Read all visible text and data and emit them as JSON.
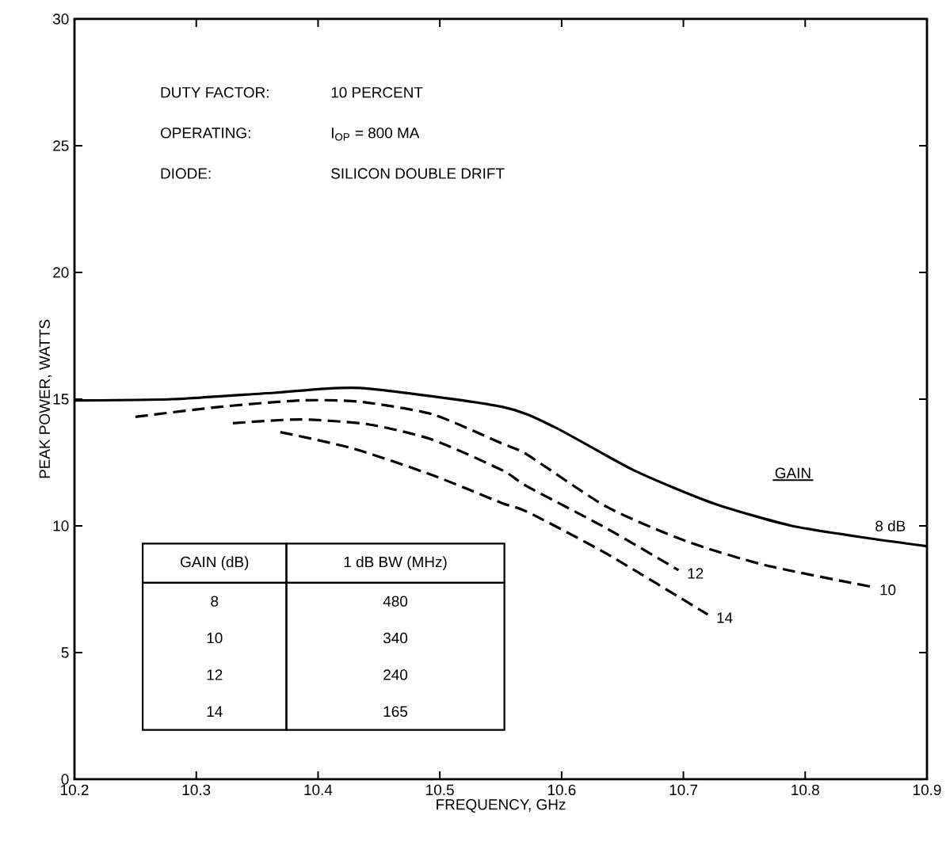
{
  "chart_data": {
    "type": "line",
    "xlabel": "FREQUENCY, GHz",
    "ylabel": "PEAK POWER, WATTS",
    "xlim": [
      10.2,
      10.9
    ],
    "ylim": [
      0,
      30
    ],
    "xticks": [
      10.2,
      10.3,
      10.4,
      10.5,
      10.6,
      10.7,
      10.8,
      10.9
    ],
    "yticks": [
      0,
      5,
      10,
      15,
      20,
      25,
      30
    ],
    "grid": false,
    "legend_title": "GAIN",
    "marker": "none",
    "series": [
      {
        "name": "8 dB",
        "color": "#000000",
        "line_style": "solid",
        "x": [
          10.2,
          10.28,
          10.364,
          10.434,
          10.551,
          10.594,
          10.659,
          10.724,
          10.789,
          10.854,
          10.9
        ],
        "values": [
          14.95,
          15.0,
          15.25,
          15.44,
          14.7,
          13.9,
          12.2,
          10.9,
          10.0,
          9.5,
          9.2
        ]
      },
      {
        "name": "10",
        "color": "#000000",
        "line_style": "dashed",
        "x": [
          10.25,
          10.32,
          10.386,
          10.434,
          10.494,
          10.551,
          10.572,
          10.637,
          10.702,
          10.767,
          10.854
        ],
        "values": [
          14.3,
          14.7,
          14.95,
          14.9,
          14.4,
          13.25,
          12.8,
          10.75,
          9.4,
          8.45,
          7.6
        ]
      },
      {
        "name": "12",
        "color": "#000000",
        "line_style": "dashed",
        "x": [
          10.33,
          10.386,
          10.442,
          10.494,
          10.551,
          10.572,
          10.637,
          10.696
        ],
        "values": [
          14.05,
          14.2,
          14.0,
          13.4,
          12.2,
          11.55,
          9.9,
          8.25
        ]
      },
      {
        "name": "14",
        "color": "#000000",
        "line_style": "dashed",
        "x": [
          10.369,
          10.429,
          10.494,
          10.551,
          10.572,
          10.637,
          10.72
        ],
        "values": [
          13.7,
          13.05,
          12.0,
          10.9,
          10.55,
          8.9,
          6.5
        ]
      }
    ],
    "annotations": [
      "DUTY FACTOR:",
      "10 PERCENT",
      "OPERATING:",
      "I$_{OP}$ = 800 MA",
      "DIODE:",
      "SILICON DOUBLE DRIFT",
      "GAIN (dB)",
      "1 dB BW (MHz)",
      "8",
      "480",
      "10",
      "340",
      "12",
      "240",
      "14",
      "165"
    ]
  }
}
